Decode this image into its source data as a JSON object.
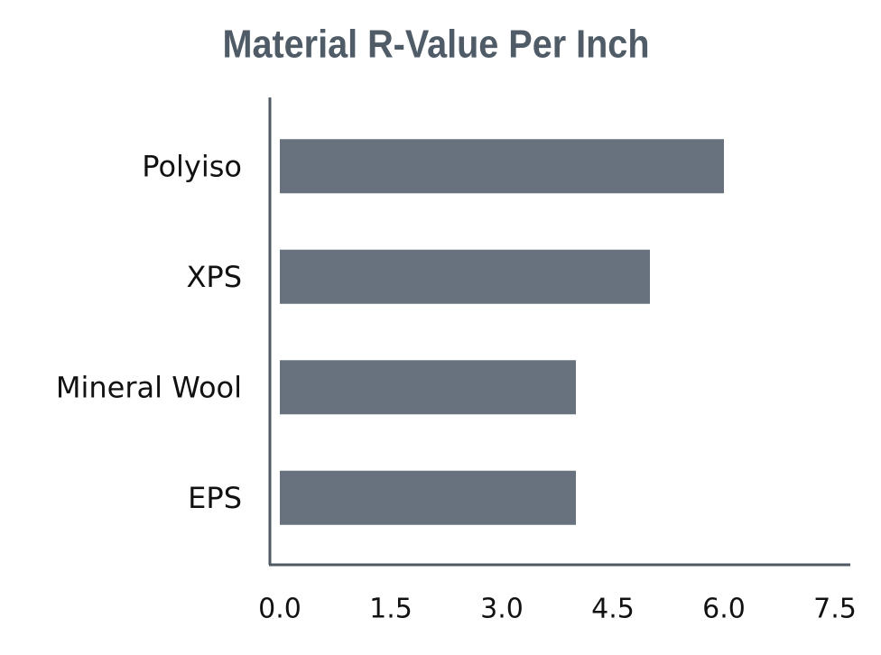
{
  "chart_data": {
    "type": "barh",
    "title": "Material R-Value Per Inch",
    "categories": [
      "Polyiso",
      "XPS",
      "Mineral Wool",
      "EPS"
    ],
    "values": [
      6.0,
      5.0,
      4.0,
      4.0
    ],
    "color": "#67727e",
    "xlim": [
      0,
      7.5
    ],
    "xticks": [
      {
        "value": 0,
        "label": "0.0"
      },
      1.5,
      {
        "value": 3,
        "label": "3.0"
      },
      4.5,
      {
        "value": 6,
        "label": "6.0"
      },
      7.5
    ],
    "grid": false
  }
}
